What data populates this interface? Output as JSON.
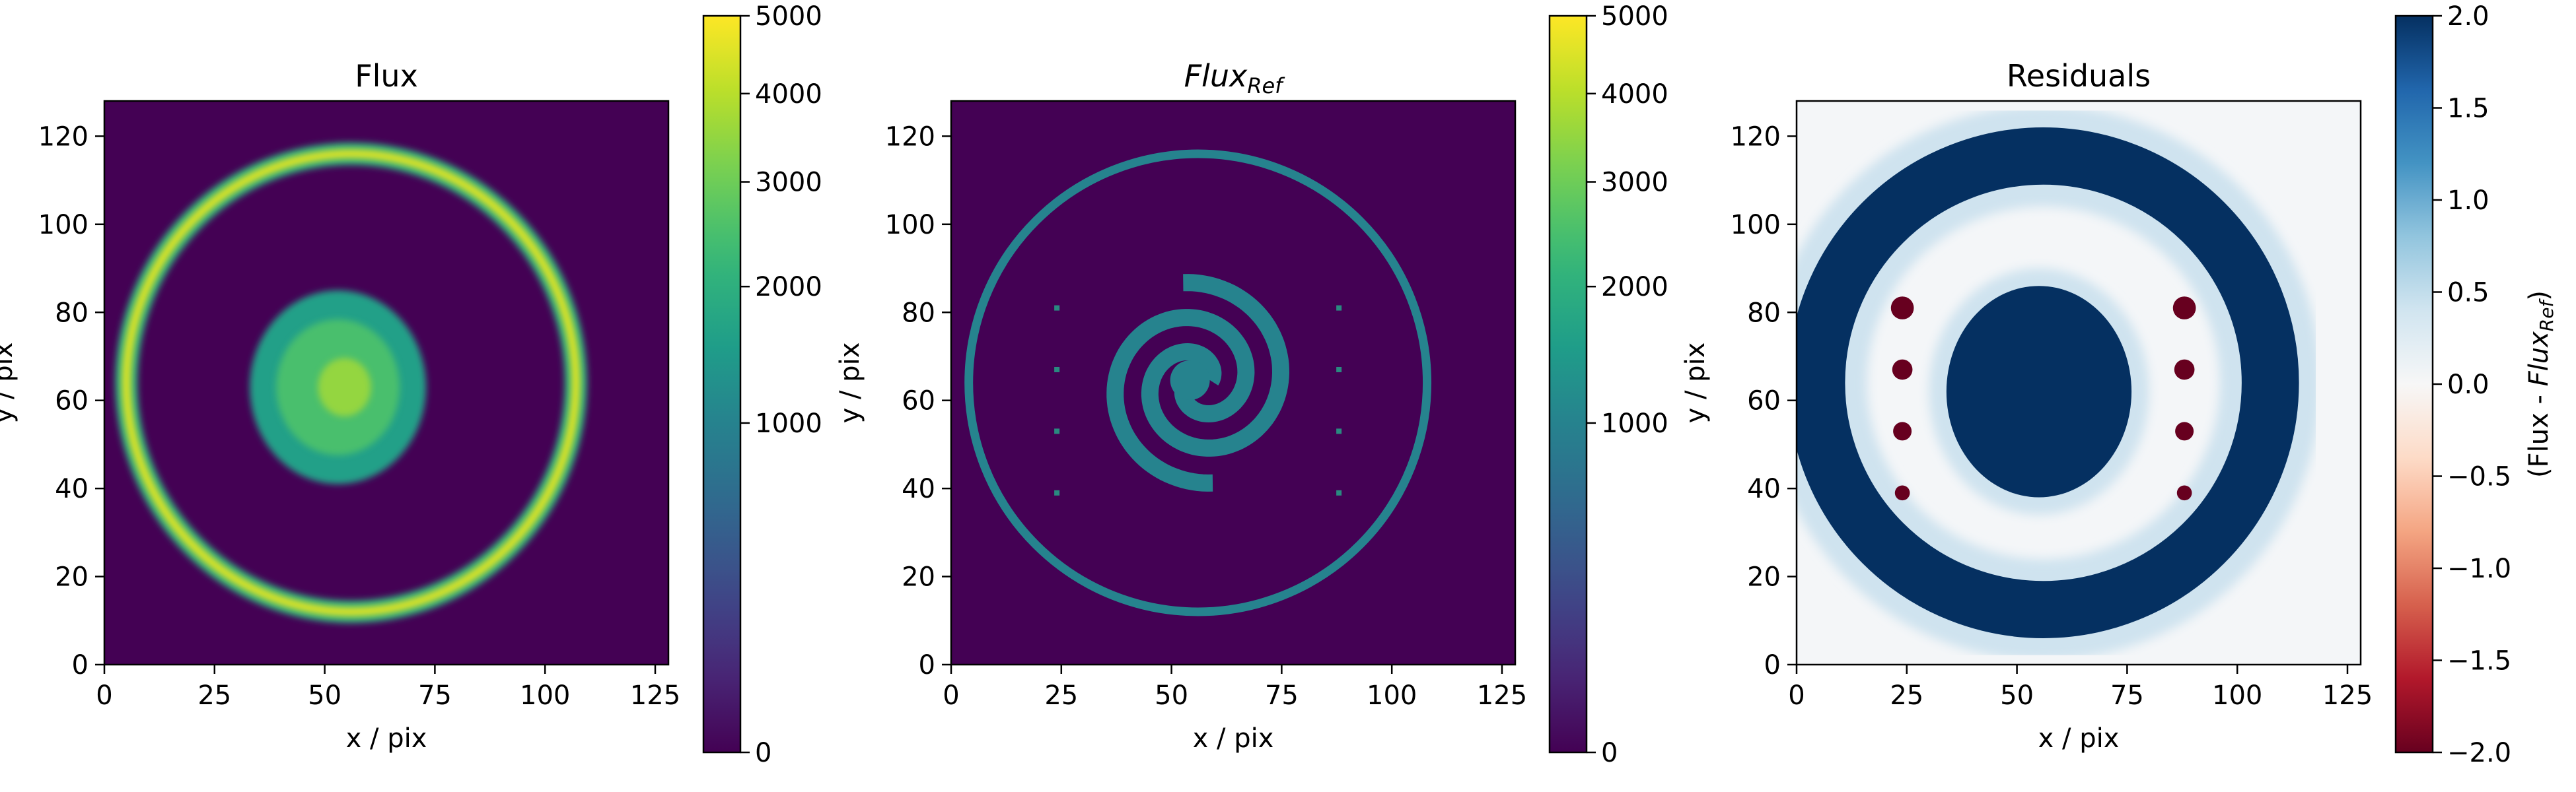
{
  "chart_data": [
    {
      "type": "heatmap",
      "title": "Flux",
      "xlabel": "x / pix",
      "ylabel": "y / pix",
      "xlim": [
        0,
        128
      ],
      "ylim": [
        0,
        128
      ],
      "xticks": [
        "0",
        "25",
        "50",
        "75",
        "100",
        "125"
      ],
      "yticks": [
        "0",
        "20",
        "40",
        "60",
        "80",
        "100",
        "120"
      ],
      "colormap": "viridis",
      "colorbar": {
        "ticks": [
          "0",
          "1000",
          "2000",
          "3000",
          "4000",
          "5000"
        ],
        "range": [
          0,
          5000
        ],
        "scale": "sqrt"
      },
      "features": {
        "ring": {
          "center": [
            56,
            64
          ],
          "rx": 51,
          "ry": 52,
          "value": 4500
        },
        "blob": {
          "center": [
            53,
            63
          ],
          "rx": 20,
          "ry": 22,
          "value": 2500
        },
        "background": 0
      }
    },
    {
      "type": "heatmap",
      "title": "Flux",
      "title_sub": "Ref",
      "xlabel": "x / pix",
      "ylabel": "y / pix",
      "xlim": [
        0,
        128
      ],
      "ylim": [
        0,
        128
      ],
      "xticks": [
        "0",
        "25",
        "50",
        "75",
        "100",
        "125"
      ],
      "yticks": [
        "0",
        "20",
        "40",
        "60",
        "80",
        "100",
        "120"
      ],
      "colormap": "viridis",
      "colorbar": {
        "ticks": [
          "0",
          "1000",
          "2000",
          "3000",
          "4000",
          "5000"
        ],
        "range": [
          0,
          5000
        ],
        "scale": "sqrt"
      },
      "features": {
        "ring": {
          "center": [
            56,
            64
          ],
          "r": 52,
          "value": 1000
        },
        "spiral": {
          "center": [
            56,
            64
          ],
          "value": 1000
        },
        "dots": [
          [
            24,
            81
          ],
          [
            24,
            67
          ],
          [
            24,
            53
          ],
          [
            24,
            39
          ],
          [
            88,
            81
          ],
          [
            88,
            67
          ],
          [
            88,
            53
          ],
          [
            88,
            39
          ]
        ],
        "background": 0
      }
    },
    {
      "type": "heatmap",
      "title": "Residuals",
      "xlabel": "x / pix",
      "ylabel": "y / pix",
      "xlim": [
        0,
        128
      ],
      "ylim": [
        0,
        128
      ],
      "xticks": [
        "0",
        "25",
        "50",
        "75",
        "100",
        "125"
      ],
      "yticks": [
        "0",
        "20",
        "40",
        "60",
        "80",
        "100",
        "120"
      ],
      "colormap": "RdBu",
      "colorbar": {
        "ticks": [
          "2.0",
          "1.5",
          "1.0",
          "0.5",
          "0.0",
          "−0.5",
          "−1.0",
          "−1.5",
          "−2.0"
        ],
        "range": [
          -2.0,
          2.0
        ],
        "label_main": "(Flux - ",
        "label_italic": "Flux",
        "label_sub": "Ref",
        "label_close": ")"
      },
      "features": {
        "ring": {
          "center": [
            56,
            64
          ],
          "r_inner": 45,
          "r_outer": 58,
          "value": 2.0
        },
        "blob": {
          "center": [
            55,
            62
          ],
          "rx": 21,
          "ry": 24,
          "value": 2.0
        },
        "left_crescent": {
          "value": -2.0
        },
        "dots": [
          [
            24,
            81
          ],
          [
            24,
            67
          ],
          [
            24,
            53
          ],
          [
            24,
            39
          ],
          [
            88,
            81
          ],
          [
            88,
            67
          ],
          [
            88,
            53
          ],
          [
            88,
            39
          ]
        ],
        "dot_value": -2.0,
        "background": 0.15
      }
    }
  ]
}
